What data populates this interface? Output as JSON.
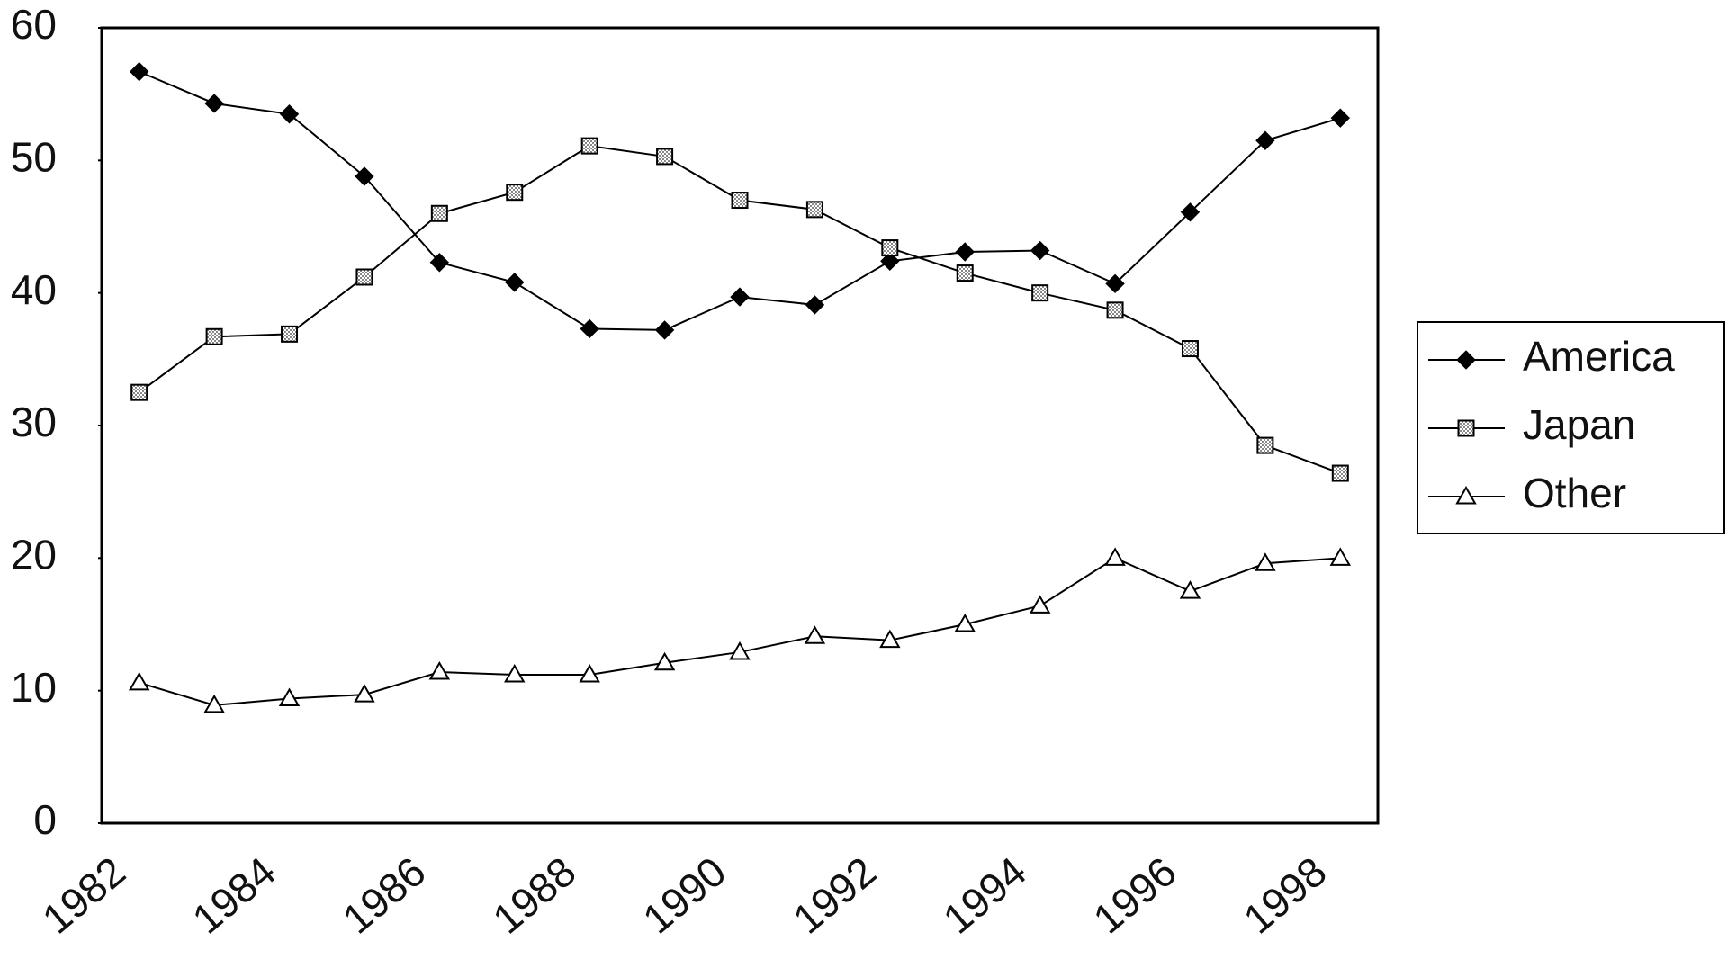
{
  "chart_data": {
    "type": "line",
    "categories": [
      "1982",
      null,
      "1984",
      null,
      "1986",
      null,
      "1988",
      null,
      "1990",
      null,
      "1992",
      null,
      "1994",
      null,
      "1996",
      null,
      "1998"
    ],
    "series": [
      {
        "name": "America",
        "color": "#000000",
        "marker": "diamond",
        "values": [
          56.7,
          54.3,
          53.5,
          48.8,
          42.3,
          40.8,
          37.3,
          37.2,
          39.7,
          39.1,
          42.4,
          43.1,
          43.2,
          40.7,
          46.1,
          51.5,
          53.2
        ]
      },
      {
        "name": "Japan",
        "color": "#000000",
        "marker": "square",
        "values": [
          32.5,
          36.7,
          36.9,
          41.2,
          46.0,
          47.6,
          51.1,
          50.3,
          47.0,
          46.3,
          43.4,
          41.5,
          40.0,
          38.7,
          35.8,
          28.5,
          26.4
        ]
      },
      {
        "name": "Other",
        "color": "#000000",
        "marker": "triangle",
        "values": [
          10.6,
          8.9,
          9.4,
          9.7,
          11.4,
          11.2,
          11.2,
          12.1,
          12.9,
          14.1,
          13.8,
          15.0,
          16.4,
          20.0,
          17.5,
          19.6,
          20.0
        ]
      }
    ],
    "ylim": [
      0,
      60
    ],
    "yticks": [
      0,
      10,
      20,
      30,
      40,
      50,
      60
    ],
    "grid": false,
    "legend": "right"
  }
}
